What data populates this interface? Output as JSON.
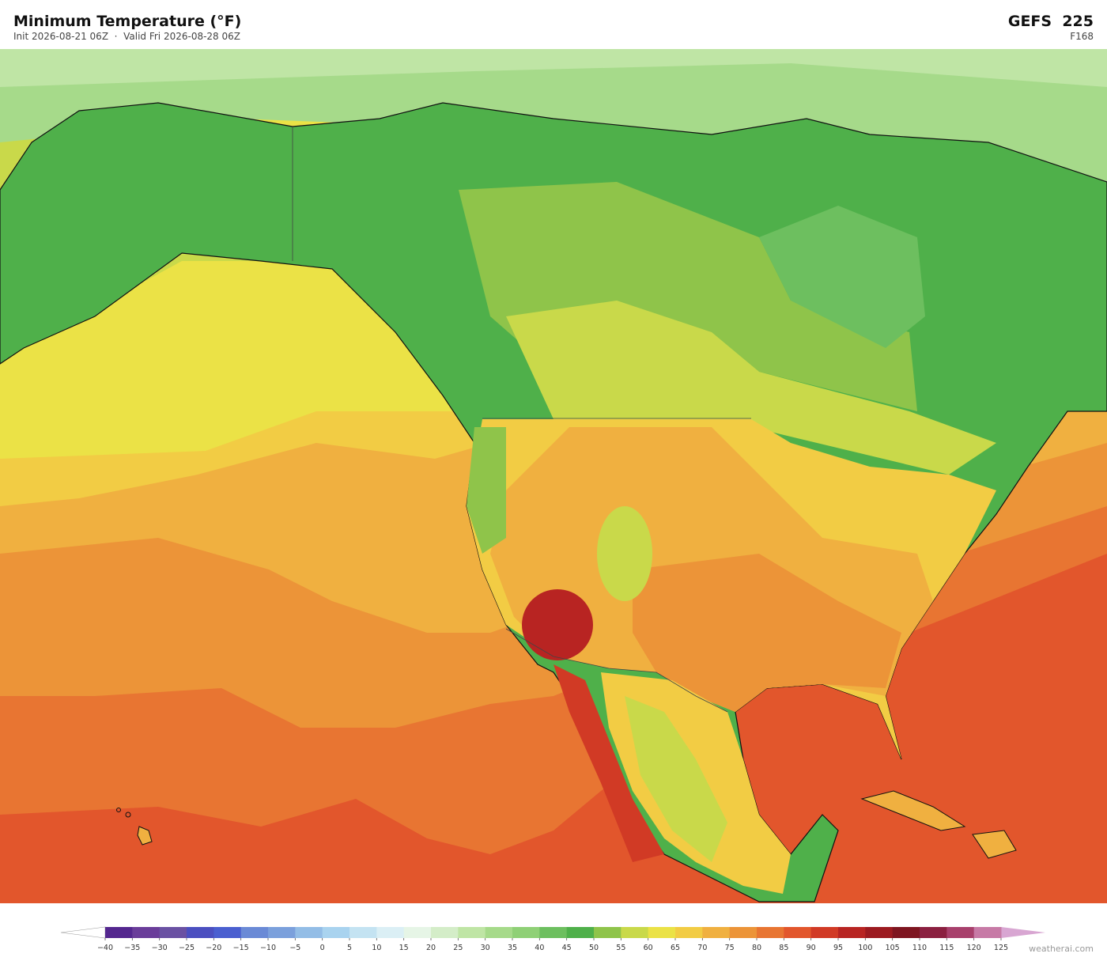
{
  "header": {
    "title": "Minimum Temperature  (°F)",
    "subtitle": "Init 2026-08-21 06Z  ·  Valid Fri 2026-08-28 06Z",
    "model": "GEFS  225",
    "forecast_hour": "F168"
  },
  "legend": {
    "ticks": [
      {
        "value": -40,
        "label": "−40"
      },
      {
        "value": -35,
        "label": "−35"
      },
      {
        "value": -30,
        "label": "−30"
      },
      {
        "value": -25,
        "label": "−25"
      },
      {
        "value": -20,
        "label": "−20"
      },
      {
        "value": -15,
        "label": "−15"
      },
      {
        "value": -10,
        "label": "−10"
      },
      {
        "value": -5,
        "label": "−5"
      },
      0,
      5,
      10,
      15,
      20,
      25,
      30,
      35,
      40,
      45,
      50,
      55,
      60,
      65,
      70,
      75,
      80,
      85,
      90,
      95,
      100,
      105,
      110,
      115,
      120,
      125
    ],
    "colors": [
      "#54278f",
      "#6a3d9a",
      "#6a51a3",
      "#4b4fc0",
      "#4a5fd0",
      "#6a8ad6",
      "#7ba0dc",
      "#93bde6",
      "#a9d3ef",
      "#c4e3f2",
      "#dbeff5",
      "#e6f5e6",
      "#d4edc8",
      "#bfe5a5",
      "#a6da8a",
      "#8fd076",
      "#6dbf5f",
      "#4fb04a",
      "#8fc44a",
      "#c9d94a",
      "#ebe246",
      "#f2cc44",
      "#f0b040",
      "#ec9438",
      "#e87532",
      "#e2562c",
      "#d13a25",
      "#b82422",
      "#9c1a20",
      "#7e1520",
      "#8b2040",
      "#a8406c",
      "#c77aa6"
    ],
    "under_color": "#ffffff",
    "over_color": "#d8a6d2"
  },
  "footer": {
    "watermark": "weatherai.com"
  }
}
